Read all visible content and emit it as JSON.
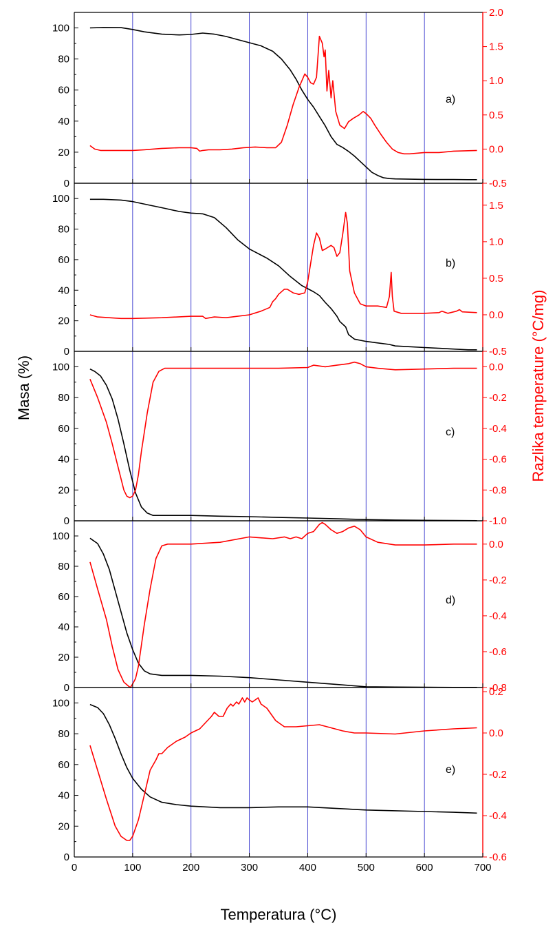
{
  "chart_data": {
    "type": "line",
    "xlabel": "Temperatura (°C)",
    "ylabel_left": "Masa (%)",
    "ylabel_right": "Razlika temperature (°C/mg)",
    "xlim": [
      0,
      700
    ],
    "xticks": [
      0,
      100,
      200,
      300,
      400,
      500,
      600,
      700
    ],
    "vertical_grid": [
      100,
      200,
      300,
      400,
      500,
      600
    ],
    "colors": {
      "mass": "#000000",
      "dta": "#ff0000",
      "grid": "#3333cc"
    },
    "panels": [
      {
        "label": "a)",
        "left_ylim": [
          0,
          110
        ],
        "left_ticks": [
          0,
          20,
          40,
          60,
          80,
          100
        ],
        "right_ylim": [
          -0.5,
          2.0
        ],
        "right_ticks": [
          "-0.5",
          "0.0",
          "0.5",
          "1.0",
          "1.5",
          "2.0"
        ],
        "series": [
          {
            "name": "",
            "axis": "left",
            "color": "#000000",
            "x": [
              27,
              50,
              80,
              100,
              120,
              150,
              180,
              200,
              220,
              240,
              260,
              280,
              300,
              320,
              340,
              355,
              370,
              380,
              390,
              400,
              410,
              420,
              430,
              440,
              450,
              460,
              470,
              480,
              490,
              500,
              510,
              520,
              530,
              540,
              550,
              575,
              600,
              625,
              650,
              675,
              690
            ],
            "y": [
              100,
              100.3,
              100.2,
              99,
              97.5,
              96,
              95.5,
              95.8,
              96.7,
              96,
              94.5,
              92.5,
              90.5,
              88.5,
              85,
              80,
              73,
              67,
              60,
              54,
              49,
              43,
              37,
              30,
              25,
              23,
              20.5,
              17.5,
              14,
              10.5,
              7,
              5,
              3.5,
              3,
              2.8,
              2.6,
              2.5,
              2.4,
              2.4,
              2.3,
              2.3
            ]
          },
          {
            "name": "",
            "axis": "right",
            "color": "#ff0000",
            "x": [
              27,
              35,
              45,
              60,
              80,
              100,
              120,
              150,
              180,
              200,
              210,
              215,
              220,
              230,
              250,
              270,
              290,
              310,
              330,
              345,
              355,
              365,
              375,
              385,
              395,
              400,
              405,
              410,
              415,
              420,
              425,
              428,
              430,
              433,
              436,
              440,
              443,
              448,
              455,
              463,
              470,
              478,
              488,
              495,
              500,
              508,
              515,
              525,
              535,
              545,
              555,
              565,
              575,
              600,
              625,
              650,
              690
            ],
            "y": [
              0.05,
              0.0,
              -0.02,
              -0.02,
              -0.02,
              -0.02,
              -0.01,
              0.01,
              0.02,
              0.02,
              0.01,
              -0.03,
              -0.02,
              -0.01,
              -0.01,
              0.0,
              0.02,
              0.03,
              0.02,
              0.02,
              0.1,
              0.35,
              0.65,
              0.9,
              1.1,
              1.05,
              0.97,
              0.95,
              1.05,
              1.65,
              1.55,
              1.35,
              1.45,
              0.85,
              1.15,
              0.75,
              1.0,
              0.55,
              0.35,
              0.3,
              0.4,
              0.45,
              0.5,
              0.55,
              0.52,
              0.45,
              0.35,
              0.22,
              0.1,
              0.0,
              -0.05,
              -0.07,
              -0.07,
              -0.05,
              -0.05,
              -0.03,
              -0.02
            ]
          }
        ]
      },
      {
        "label": "b)",
        "left_ylim": [
          0,
          110
        ],
        "left_ticks": [
          0,
          20,
          40,
          60,
          80,
          100
        ],
        "right_ylim": [
          -0.5,
          1.8
        ],
        "right_ticks": [
          "-0.5",
          "0.0",
          "0.5",
          "1.0",
          "1.5"
        ],
        "series": [
          {
            "name": "",
            "axis": "left",
            "color": "#000000",
            "x": [
              27,
              50,
              80,
              100,
              125,
              150,
              180,
              200,
              220,
              240,
              260,
              280,
              300,
              330,
              350,
              370,
              390,
              410,
              420,
              430,
              440,
              450,
              455,
              465,
              470,
              480,
              500,
              520,
              540,
              550,
              575,
              600,
              625,
              650,
              675,
              690
            ],
            "y": [
              99.5,
              99.5,
              99,
              98,
              96,
              94,
              91.5,
              90.5,
              90,
              87.5,
              81,
              73,
              67,
              61,
              56,
              49,
              43,
              39,
              36.5,
              32,
              28,
              23,
              19.5,
              16,
              11,
              8,
              6.5,
              5.5,
              4.5,
              3.5,
              3,
              2.5,
              2,
              1.5,
              1,
              1
            ]
          },
          {
            "name": "",
            "axis": "right",
            "color": "#ff0000",
            "x": [
              27,
              40,
              60,
              80,
              100,
              150,
              200,
              220,
              225,
              240,
              260,
              280,
              300,
              320,
              335,
              340,
              345,
              350,
              360,
              365,
              375,
              385,
              395,
              400,
              410,
              415,
              420,
              425,
              430,
              440,
              445,
              450,
              455,
              460,
              465,
              468,
              472,
              480,
              490,
              500,
              520,
              535,
              540,
              543,
              545,
              548,
              560,
              600,
              625,
              630,
              640,
              655,
              660,
              665,
              690
            ],
            "y": [
              0.0,
              -0.03,
              -0.04,
              -0.05,
              -0.05,
              -0.04,
              -0.02,
              -0.02,
              -0.05,
              -0.03,
              -0.04,
              -0.02,
              0.0,
              0.05,
              0.1,
              0.18,
              0.22,
              0.28,
              0.35,
              0.35,
              0.3,
              0.28,
              0.3,
              0.45,
              0.95,
              1.12,
              1.05,
              0.88,
              0.9,
              0.95,
              0.92,
              0.8,
              0.85,
              1.1,
              1.4,
              1.25,
              0.6,
              0.3,
              0.15,
              0.12,
              0.12,
              0.1,
              0.25,
              0.58,
              0.25,
              0.05,
              0.02,
              0.02,
              0.03,
              0.05,
              0.02,
              0.05,
              0.07,
              0.04,
              0.03
            ]
          }
        ]
      },
      {
        "label": "c)",
        "left_ylim": [
          0,
          110
        ],
        "left_ticks": [
          0,
          20,
          40,
          60,
          80,
          100
        ],
        "right_ylim": [
          -1.0,
          0.1
        ],
        "right_ticks": [
          "-1.0",
          "-0.8",
          "-0.6",
          "-0.4",
          "-0.2",
          "0.0"
        ],
        "series": [
          {
            "name": "",
            "axis": "left",
            "color": "#000000",
            "x": [
              27,
              35,
              45,
              55,
              65,
              75,
              85,
              95,
              105,
              115,
              125,
              135,
              150,
              200,
              250,
              300,
              350,
              400,
              450,
              500,
              550,
              600,
              650,
              690
            ],
            "y": [
              98.5,
              97,
              94,
              88,
              79,
              66,
              50,
              33,
              18,
              9,
              5,
              3.5,
              3.5,
              3.5,
              3,
              2.7,
              2.2,
              1.8,
              1.3,
              0.8,
              0.5,
              0.3,
              0.2,
              0.1
            ]
          },
          {
            "name": "",
            "axis": "right",
            "color": "#ff0000",
            "x": [
              27,
              40,
              55,
              65,
              75,
              85,
              90,
              95,
              100,
              105,
              110,
              115,
              125,
              135,
              145,
              155,
              165,
              200,
              250,
              300,
              350,
              400,
              410,
              430,
              450,
              470,
              480,
              490,
              500,
              520,
              550,
              600,
              650,
              690
            ],
            "y": [
              -0.08,
              -0.2,
              -0.36,
              -0.5,
              -0.65,
              -0.8,
              -0.84,
              -0.85,
              -0.84,
              -0.8,
              -0.7,
              -0.55,
              -0.3,
              -0.1,
              -0.03,
              -0.01,
              -0.01,
              -0.01,
              -0.01,
              -0.01,
              -0.01,
              -0.005,
              0.01,
              0.0,
              0.01,
              0.02,
              0.03,
              0.02,
              0.0,
              -0.01,
              -0.02,
              -0.015,
              -0.01,
              -0.01
            ]
          }
        ]
      },
      {
        "label": "d)",
        "left_ylim": [
          0,
          110
        ],
        "left_ticks": [
          0,
          20,
          40,
          60,
          80,
          100
        ],
        "right_ylim": [
          -0.8,
          0.13
        ],
        "right_ticks": [
          "-0.8",
          "-0.6",
          "-0.4",
          "-0.2",
          "0.0"
        ],
        "series": [
          {
            "name": "",
            "axis": "left",
            "color": "#000000",
            "x": [
              27,
              40,
              50,
              60,
              70,
              80,
              90,
              100,
              110,
              120,
              130,
              140,
              150,
              200,
              250,
              300,
              350,
              400,
              450,
              500,
              550,
              600,
              650,
              690
            ],
            "y": [
              98.5,
              95,
              88,
              78,
              64,
              50,
              36,
              25,
              16,
              11,
              9,
              8.5,
              8,
              8,
              7.5,
              6.5,
              5,
              3.5,
              2,
              0.5,
              0.3,
              0.2,
              0.1,
              0.1
            ]
          },
          {
            "name": "",
            "axis": "right",
            "color": "#ff0000",
            "x": [
              27,
              40,
              55,
              65,
              75,
              85,
              92,
              96,
              100,
              105,
              110,
              120,
              130,
              140,
              150,
              160,
              170,
              200,
              250,
              300,
              340,
              360,
              370,
              380,
              390,
              400,
              410,
              420,
              425,
              430,
              440,
              450,
              460,
              470,
              480,
              490,
              500,
              520,
              550,
              600,
              650,
              690
            ],
            "y": [
              -0.1,
              -0.25,
              -0.42,
              -0.57,
              -0.7,
              -0.77,
              -0.79,
              -0.8,
              -0.78,
              -0.75,
              -0.68,
              -0.45,
              -0.25,
              -0.08,
              -0.01,
              0.0,
              0.0,
              0.0,
              0.01,
              0.04,
              0.03,
              0.04,
              0.03,
              0.04,
              0.03,
              0.06,
              0.07,
              0.11,
              0.12,
              0.11,
              0.08,
              0.06,
              0.07,
              0.09,
              0.1,
              0.08,
              0.04,
              0.01,
              -0.005,
              -0.005,
              0.0,
              0.0
            ]
          }
        ]
      },
      {
        "label": "e)",
        "left_ylim": [
          0,
          110
        ],
        "left_ticks": [
          0,
          20,
          40,
          60,
          80,
          100
        ],
        "right_ylim": [
          -0.6,
          0.22
        ],
        "right_ticks": [
          "-0.6",
          "-0.4",
          "-0.2",
          "0.0",
          "0.2"
        ],
        "series": [
          {
            "name": "",
            "axis": "left",
            "color": "#000000",
            "x": [
              27,
              40,
              50,
              60,
              70,
              80,
              90,
              100,
              115,
              130,
              150,
              175,
              200,
              250,
              300,
              350,
              400,
              450,
              500,
              550,
              600,
              650,
              690
            ],
            "y": [
              99,
              97,
              93,
              86,
              77,
              67,
              58,
              51,
              44,
              39,
              35.5,
              34,
              33,
              32,
              32,
              32.5,
              32.5,
              31.5,
              30.5,
              30,
              29.5,
              29,
              28.5
            ]
          },
          {
            "name": "",
            "axis": "right",
            "color": "#ff0000",
            "x": [
              27,
              40,
              55,
              70,
              80,
              90,
              95,
              100,
              110,
              120,
              130,
              140,
              145,
              150,
              160,
              175,
              190,
              200,
              215,
              225,
              235,
              240,
              248,
              255,
              262,
              268,
              272,
              278,
              282,
              288,
              292,
              296,
              300,
              305,
              310,
              315,
              320,
              330,
              345,
              360,
              380,
              400,
              420,
              440,
              460,
              480,
              500,
              550,
              600,
              650,
              690
            ],
            "y": [
              -0.06,
              -0.18,
              -0.32,
              -0.45,
              -0.5,
              -0.52,
              -0.52,
              -0.5,
              -0.42,
              -0.3,
              -0.18,
              -0.13,
              -0.1,
              -0.1,
              -0.07,
              -0.04,
              -0.02,
              0.0,
              0.02,
              0.05,
              0.08,
              0.1,
              0.08,
              0.08,
              0.12,
              0.14,
              0.13,
              0.15,
              0.14,
              0.17,
              0.15,
              0.17,
              0.16,
              0.15,
              0.16,
              0.17,
              0.14,
              0.12,
              0.06,
              0.03,
              0.03,
              0.035,
              0.04,
              0.025,
              0.01,
              0.0,
              0.0,
              -0.005,
              0.01,
              0.02,
              0.025
            ]
          }
        ]
      }
    ]
  }
}
